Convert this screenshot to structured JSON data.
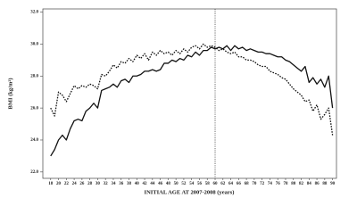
{
  "chart_data": {
    "type": "line",
    "x_label": "INITIAL AGE AT 2007-2008 (years)",
    "y_label": "BMI (kg/m²)",
    "x": [
      18,
      19,
      20,
      21,
      22,
      23,
      24,
      25,
      26,
      27,
      28,
      29,
      30,
      31,
      32,
      33,
      34,
      35,
      36,
      37,
      38,
      39,
      40,
      41,
      42,
      43,
      44,
      45,
      46,
      47,
      48,
      49,
      50,
      51,
      52,
      53,
      54,
      55,
      56,
      57,
      58,
      59,
      60,
      61,
      62,
      63,
      64,
      65,
      66,
      67,
      68,
      69,
      70,
      71,
      72,
      73,
      74,
      75,
      76,
      77,
      78,
      79,
      80,
      81,
      82,
      83,
      84,
      85,
      86,
      87,
      88,
      89,
      90
    ],
    "series": [
      {
        "color": "#111111",
        "dash": "solid",
        "values": [
          23.0,
          23.4,
          24.0,
          24.3,
          24.0,
          24.7,
          25.2,
          25.3,
          25.2,
          25.8,
          26.0,
          26.3,
          26.0,
          27.1,
          27.2,
          27.3,
          27.5,
          27.3,
          27.7,
          27.8,
          27.6,
          28.0,
          28.0,
          28.1,
          28.3,
          28.3,
          28.4,
          28.3,
          28.4,
          28.8,
          28.8,
          29.0,
          28.9,
          29.1,
          29.0,
          29.3,
          29.2,
          29.5,
          29.3,
          29.6,
          29.6,
          29.8,
          29.7,
          29.8,
          29.7,
          29.9,
          29.6,
          29.9,
          29.7,
          29.8,
          29.6,
          29.7,
          29.6,
          29.5,
          29.5,
          29.4,
          29.4,
          29.3,
          29.2,
          29.2,
          29.0,
          28.9,
          28.7,
          28.5,
          28.3,
          28.6,
          27.6,
          27.9,
          27.5,
          27.8,
          27.3,
          28.0,
          26.0
        ]
      },
      {
        "color": "#111111",
        "dash": "dotted",
        "values": [
          26.0,
          25.5,
          27.0,
          26.8,
          26.4,
          26.9,
          27.4,
          27.2,
          27.4,
          27.3,
          27.5,
          27.4,
          27.2,
          28.1,
          28.0,
          28.3,
          28.7,
          28.5,
          28.9,
          28.8,
          29.1,
          28.9,
          29.3,
          29.1,
          29.4,
          29.0,
          29.5,
          29.3,
          29.6,
          29.4,
          29.5,
          29.3,
          29.6,
          29.4,
          29.7,
          29.5,
          29.8,
          29.9,
          29.7,
          30.0,
          29.8,
          29.9,
          29.8,
          29.6,
          29.7,
          29.5,
          29.4,
          29.5,
          29.2,
          29.2,
          29.0,
          29.0,
          28.9,
          28.7,
          28.6,
          28.6,
          28.3,
          28.2,
          28.1,
          27.9,
          27.8,
          27.5,
          27.2,
          27.0,
          26.8,
          26.4,
          26.5,
          25.8,
          26.2,
          25.3,
          25.6,
          26.0,
          24.3
        ]
      }
    ],
    "xlim": [
      16,
      91
    ],
    "ylim": [
      21.6,
      32.2
    ],
    "xticks": [
      18,
      20,
      22,
      24,
      26,
      28,
      30,
      32,
      34,
      36,
      38,
      40,
      42,
      44,
      46,
      48,
      50,
      52,
      54,
      56,
      58,
      60,
      62,
      64,
      66,
      68,
      70,
      72,
      74,
      76,
      78,
      80,
      82,
      84,
      86,
      88,
      90
    ],
    "yticks": [
      {
        "value": 22,
        "label": "22.0"
      },
      {
        "value": 24,
        "label": "24.0"
      },
      {
        "value": 26,
        "label": "26.0"
      },
      {
        "value": 28,
        "label": "28.0"
      },
      {
        "value": 30,
        "label": "30.0"
      },
      {
        "value": 32,
        "label": "32.0"
      }
    ],
    "vline": 60,
    "grid": false
  }
}
